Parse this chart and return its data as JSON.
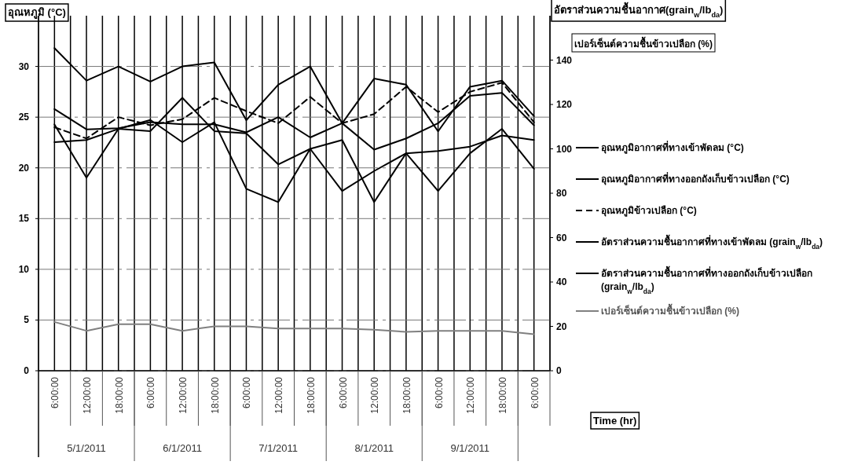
{
  "chart_data": {
    "type": "line",
    "ylabel": "อุณหภูมิ (°C)",
    "y2label": "อัตราส่วนความชื้นอากาศ(grain$_{w}$/lb$_{da}$)",
    "xlabel": "Time (hr)",
    "categories": [
      "6:00:00",
      "12:00:00",
      "18:00:00",
      "6:00:00",
      "12:00:00",
      "18:00:00",
      "6:00:00",
      "12:00:00",
      "18:00:00",
      "6:00:00",
      "12:00:00",
      "18:00:00",
      "6:00:00",
      "12:00:00",
      "18:00:00",
      "6:00:00"
    ],
    "annotations": [
      "5/1/2011",
      "6/1/2011",
      "7/1/2011",
      "8/1/2011",
      "9/1/2011",
      "เปอร์เซ็นต์ความชื้นข้าวเปลือก (%)"
    ],
    "ylim": [
      0,
      35
    ],
    "yticks": [
      0,
      5,
      10,
      15,
      20,
      25,
      30
    ],
    "y2lim": [
      0,
      160
    ],
    "y2ticks": [
      0,
      20,
      40,
      60,
      80,
      100,
      120,
      140
    ],
    "grid": true,
    "legend": "right",
    "marker": "none",
    "series": [
      {
        "name": "อุณหภูมิอากาศที่ทางเข้าพัดลม (°C)",
        "color": "#000000",
        "line_style": "solid",
        "values": [
          25.8,
          23.8,
          23.9,
          24.5,
          24.3,
          24.3,
          23.5,
          25.0,
          23.0,
          24.4,
          21.8,
          22.9,
          24.4,
          27.1,
          27.4,
          24.2
        ]
      },
      {
        "name": "อุณหภูมิอากาศที่ทางออกถังเก็บข้าวเปลือก (°C)",
        "color": "#000000",
        "line_style": "solid",
        "values": [
          31.8,
          28.6,
          30.0,
          28.5,
          30.0,
          30.4,
          24.7,
          28.2,
          30.0,
          24.4,
          28.8,
          28.2,
          23.6,
          28.0,
          28.6,
          25.1
        ]
      },
      {
        "name": "อุณหภูมิข้าวเปลือก (°C)",
        "color": "#000000",
        "line_style": "dashed",
        "values": [
          24.0,
          22.9,
          25.0,
          24.2,
          24.8,
          26.9,
          25.6,
          24.4,
          27.0,
          24.4,
          25.3,
          28.0,
          25.5,
          27.5,
          28.4,
          24.5
        ]
      },
      {
        "name": "อัตราส่วนความชื้นอากาศที่ทางเข้าพัดลม (grain$_{w}$/lb$_{da}$)",
        "color": "#000000",
        "line_style": "solid",
        "axis": "y2",
        "values": [
          103,
          104,
          109,
          108,
          123,
          108,
          107,
          93,
          100,
          104,
          76,
          98,
          81,
          98,
          109,
          91
        ]
      },
      {
        "name": "อัตราส่วนความชื้นอากาศที่ทางออกถังเก็บข้าวเปลือก (grain$_{w}$/lb$_{da}$)",
        "color": "#000000",
        "line_style": "solid",
        "axis": "y2",
        "values": [
          111,
          87,
          109,
          113,
          103,
          112,
          82,
          76,
          100,
          81,
          90,
          98,
          99,
          101,
          106,
          104
        ]
      },
      {
        "name": "เปอร์เซ็นต์ความชื้นข้าวเปลือก (%)",
        "color": "#808080",
        "line_style": "solid",
        "axis": "y2",
        "values": [
          22,
          18,
          21,
          21,
          18,
          20,
          20,
          19,
          19,
          19,
          18.5,
          17.5,
          18,
          18,
          18,
          16.5
        ]
      }
    ]
  }
}
